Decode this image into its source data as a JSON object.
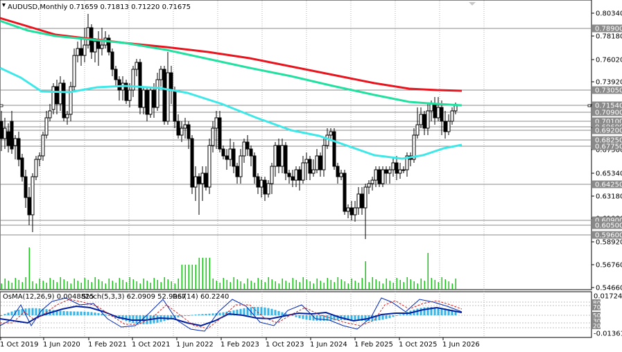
{
  "header": {
    "symbol_tf": "AUDUSD,Monthly",
    "ohlc": "0.71659 0.71813 0.71220 0.71675"
  },
  "indicator_header": {
    "osma": "OsMA(12,26,9) 0.0048825",
    "stoch": "Stoch(5,3,3) 62.0909 52.9067",
    "rsi": "RSI(14) 60.2240"
  },
  "price_axis": {
    "ticks": [
      "0.80340",
      "0.78180",
      "0.76020",
      "0.73920",
      "0.71760",
      "0.69600",
      "0.67500",
      "0.65340",
      "0.63180",
      "0.61080",
      "0.58920",
      "0.56760",
      "0.54660"
    ],
    "marked_levels": [
      "0.78900",
      "0.73050",
      "0.71540",
      "0.70900",
      "0.70100",
      "0.69600",
      "0.69200",
      "0.68250",
      "0.67750",
      "0.64250",
      "0.60900",
      "0.60500",
      "0.59600"
    ]
  },
  "indicator_axis": {
    "ticks": [
      "0.017241",
      "-0.013615"
    ],
    "levels": [
      "80",
      "70",
      "50",
      "30",
      "20"
    ]
  },
  "time_axis": {
    "labels": [
      "1 Oct 2019",
      "1 Jun 2020",
      "1 Feb 2021",
      "1 Oct 2021",
      "1 Jun 2022",
      "1 Feb 2023",
      "1 Oct 2023",
      "1 Jun 2024",
      "1 Feb 2025",
      "1 Oct 2025",
      "1 Jun 2026"
    ]
  },
  "colors": {
    "ma_red": "#e8141e",
    "ma_green": "#22e0a0",
    "ma_cyan": "#3ee8e8",
    "candle": "#000000",
    "volume": "#11cc11",
    "osma": "#33b5e5",
    "stoch_main": "#0026b3",
    "stoch_signal": "#cc2222",
    "rsi": "#001f9f",
    "grid": "#808080"
  },
  "chart_data": {
    "type": "candlestick",
    "symbol": "AUDUSD",
    "timeframe": "Monthly",
    "ylim": [
      0.5466,
      0.8034
    ],
    "current": {
      "open": 0.71659,
      "high": 0.71813,
      "low": 0.7122,
      "close": 0.71675
    }
  }
}
